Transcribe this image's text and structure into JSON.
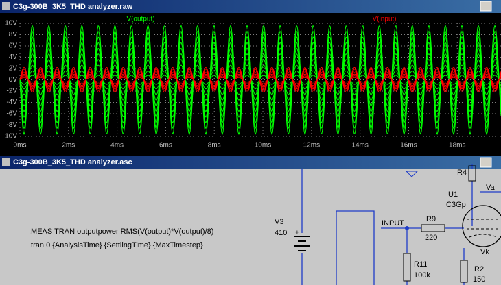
{
  "windows": {
    "waveform_title": "C3g-300B_3K5_THD analyzer.raw",
    "schematic_title": "C3g-300B_3K5_THD analyzer.asc"
  },
  "chart_data": {
    "type": "sweep",
    "ylim": [
      -10,
      10
    ],
    "yticks": [
      {
        "value": 10,
        "label": "10V"
      },
      {
        "value": 8,
        "label": "8V"
      },
      {
        "value": 6,
        "label": "6V"
      },
      {
        "value": 4,
        "label": "4V"
      },
      {
        "value": 2,
        "label": "2V"
      },
      {
        "value": 0,
        "label": "0V"
      },
      {
        "value": -2,
        "label": "-2V"
      },
      {
        "value": -4,
        "label": "-4V"
      },
      {
        "value": -6,
        "label": "-6V"
      },
      {
        "value": -8,
        "label": "-8V"
      },
      {
        "value": -10,
        "label": "-10V"
      }
    ],
    "xlim": [
      0,
      19.8
    ],
    "xticks": [
      {
        "value": 0,
        "label": "0ms"
      },
      {
        "value": 2,
        "label": "2ms"
      },
      {
        "value": 4,
        "label": "4ms"
      },
      {
        "value": 6,
        "label": "6ms"
      },
      {
        "value": 8,
        "label": "8ms"
      },
      {
        "value": 10,
        "label": "10ms"
      },
      {
        "value": 12,
        "label": "12ms"
      },
      {
        "value": 14,
        "label": "14ms"
      },
      {
        "value": 16,
        "label": "16ms"
      },
      {
        "value": 18,
        "label": "18ms"
      }
    ],
    "grid": true,
    "period": 0.68,
    "series": [
      {
        "name": "V(output)",
        "color": "#00ff00",
        "amplitudes": [
          -9.6,
          -8.6,
          -7.6,
          -6.6,
          -5.6,
          -4.6,
          -3.6,
          -2.6,
          -1.6,
          -0.8
        ]
      },
      {
        "name": "V(input)",
        "color": "#ff0000",
        "amplitudes": [
          2.2,
          1.9,
          1.6,
          1.3,
          1.0,
          0.7,
          0.4
        ]
      }
    ]
  },
  "schematic": {
    "directives": [
      ".MEAS TRAN outputpower RMS(V(output)*V(output)/8)",
      ".tran 0 {AnalysisTime} {SettlingTime} {MaxTimestep}"
    ],
    "v3": {
      "ref": "V3",
      "value": "410"
    },
    "r9": {
      "ref": "R9",
      "value": "220"
    },
    "r11": {
      "ref": "R11",
      "value": "100k"
    },
    "u1": {
      "ref": "U1",
      "value": "C3Gp"
    },
    "r4": {
      "ref": "R4"
    },
    "r2": {
      "ref": "R2",
      "value": "150"
    },
    "nets": [
      "INPUT",
      "Va",
      "Vk"
    ]
  }
}
